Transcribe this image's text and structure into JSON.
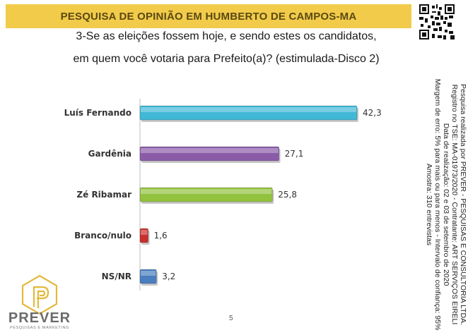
{
  "header": {
    "title": "PESQUISA DE OPINIÃO EM HUMBERTO DE CAMPOS-MA"
  },
  "question": {
    "line1": "3-Se as eleições fossem hoje, e sendo estes os candidatos,",
    "line2": "em quem você votaria para Prefeito(a)? (estimulada-Disco 2)"
  },
  "side_note": {
    "line1": "Pesquisa realizada por PREVER - PESQUISAS E CONSULTORIA LTDA.",
    "line2": "Registro no TSE: MA-01973/2020 - Contratante: ART SERVIÇOS EIRELI",
    "line3": "Data de realização: 02 e 03 de setembro de 2020",
    "line4": "Margem de erro: 5% para mais ou para menos - Intervalo de confiança: 95%",
    "line5": "Amostra: 310 entrevistas"
  },
  "page_number": "5",
  "logo": {
    "name": "PREVER",
    "tagline": "PESQUISAS E MARKETING"
  },
  "chart_data": {
    "type": "bar",
    "orientation": "horizontal",
    "categories": [
      "Luís Fernando",
      "Gardênia",
      "Zé Ribamar",
      "Branco/nulo",
      "NS/NR"
    ],
    "values": [
      42.3,
      27.1,
      25.8,
      1.6,
      3.2
    ],
    "value_labels": [
      "42,3",
      "27,1",
      "25,8",
      "1,6",
      "3,2"
    ],
    "colors": [
      "#41b8d6",
      "#8a5ca8",
      "#93c23f",
      "#c9302c",
      "#4a7ebf"
    ],
    "xlim": [
      0,
      42.3
    ],
    "grid": false,
    "legend": "none"
  }
}
